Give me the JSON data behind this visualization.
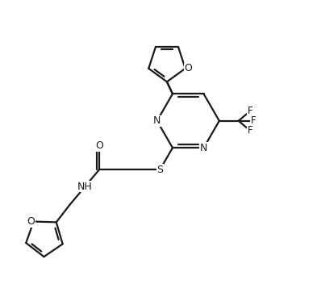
{
  "bg_color": "#ffffff",
  "bond_color": "#1a1a1a",
  "lw": 1.6,
  "fig_width": 3.93,
  "fig_height": 3.73,
  "dpi": 100,
  "xlim": [
    0,
    10
  ],
  "ylim": [
    0,
    10
  ]
}
